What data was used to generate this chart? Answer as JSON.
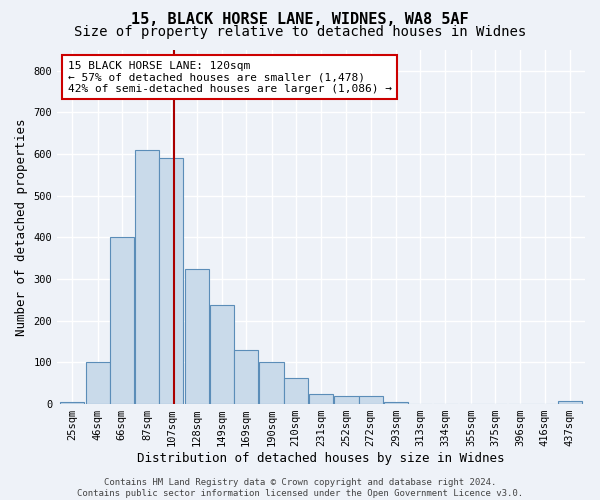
{
  "title1": "15, BLACK HORSE LANE, WIDNES, WA8 5AF",
  "title2": "Size of property relative to detached houses in Widnes",
  "xlabel": "Distribution of detached houses by size in Widnes",
  "ylabel": "Number of detached properties",
  "bins": [
    25,
    46,
    66,
    87,
    107,
    128,
    149,
    169,
    190,
    210,
    231,
    252,
    272,
    293,
    313,
    334,
    355,
    375,
    396,
    416,
    437
  ],
  "bar_heights": [
    5,
    102,
    400,
    610,
    590,
    325,
    238,
    130,
    100,
    63,
    25,
    20,
    20,
    5,
    0,
    0,
    0,
    0,
    0,
    0,
    8
  ],
  "bar_color": "#c9daea",
  "bar_edge_color": "#5b8db8",
  "vline_x": 120,
  "vline_color": "#aa0000",
  "annotation_line1": "15 BLACK HORSE LANE: 120sqm",
  "annotation_line2": "← 57% of detached houses are smaller (1,478)",
  "annotation_line3": "42% of semi-detached houses are larger (1,086) →",
  "annotation_box_color": "#ffffff",
  "annotation_box_edge": "#cc0000",
  "ylim": [
    0,
    850
  ],
  "yticks": [
    0,
    100,
    200,
    300,
    400,
    500,
    600,
    700,
    800
  ],
  "footer": "Contains HM Land Registry data © Crown copyright and database right 2024.\nContains public sector information licensed under the Open Government Licence v3.0.",
  "bg_color": "#eef2f8",
  "plot_bg_color": "#eef2f8",
  "grid_color": "#ffffff",
  "title_fontsize": 11,
  "subtitle_fontsize": 10,
  "ylabel_fontsize": 9,
  "xlabel_fontsize": 9,
  "tick_fontsize": 7.5,
  "annotation_fontsize": 8,
  "footer_fontsize": 6.5
}
